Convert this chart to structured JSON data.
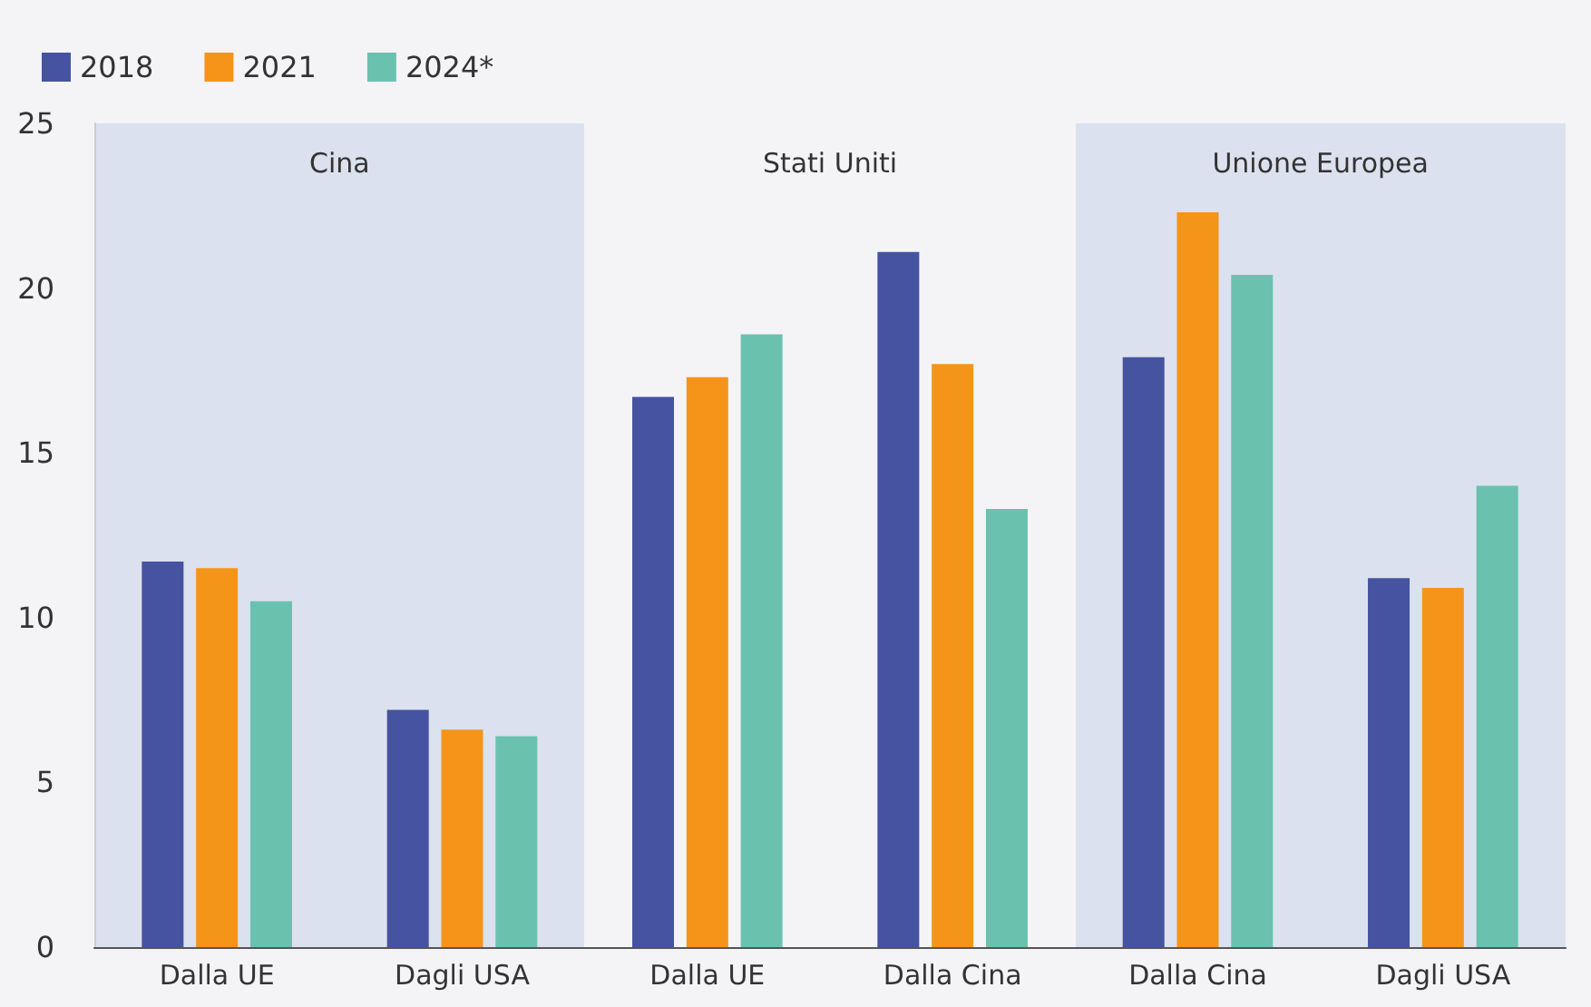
{
  "chart_data": {
    "type": "bar",
    "categories": [
      "Dalla UE",
      "Dagli USA",
      "Dalla UE",
      "Dalla Cina",
      "Dalla Cina",
      "Dagli USA"
    ],
    "series": [
      {
        "name": "2018",
        "color": "#4553a0",
        "values": [
          11.7,
          7.2,
          16.7,
          21.1,
          17.9,
          11.2
        ]
      },
      {
        "name": "2021",
        "color": "#f4951a",
        "values": [
          11.5,
          6.6,
          17.3,
          17.7,
          22.3,
          10.9
        ]
      },
      {
        "name": "2024*",
        "color": "#6ac2ae",
        "values": [
          10.5,
          6.4,
          18.6,
          13.3,
          20.4,
          14.0
        ]
      }
    ],
    "annotations": [
      "Cina",
      "Stati Uniti",
      "Unione Europea"
    ],
    "ylim": [
      0,
      25
    ],
    "yticks": [
      0,
      5,
      10,
      15,
      20,
      25
    ],
    "grid": false,
    "legend": "top left"
  }
}
